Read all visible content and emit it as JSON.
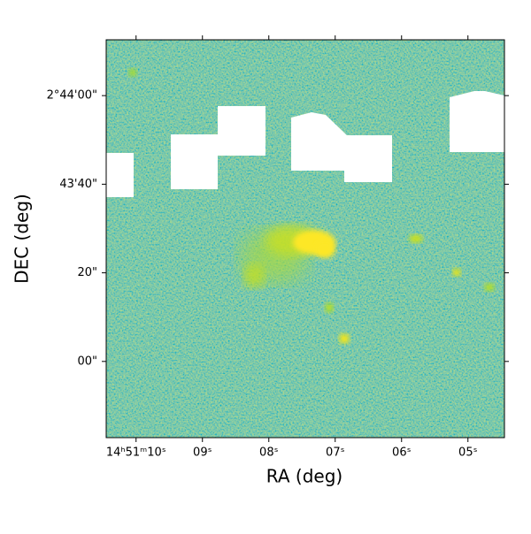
{
  "chart_data": {
    "type": "image",
    "x_label": "RA (deg)",
    "y_label": "DEC (deg)",
    "xlim": [
      10.45,
      4.45
    ],
    "xticks": [
      {
        "value": 10,
        "label": "14ʰ51ᵐ10ˢ"
      },
      {
        "value": 9,
        "label": "09ˢ"
      },
      {
        "value": 8,
        "label": "08ˢ"
      },
      {
        "value": 7,
        "label": "07ˢ"
      },
      {
        "value": 6,
        "label": "06ˢ"
      },
      {
        "value": 5,
        "label": "05ˢ"
      }
    ],
    "ylim": [
      -17.2,
      72.6
    ],
    "yticks": [
      {
        "value": 60,
        "label": "2°44'00\""
      },
      {
        "value": 40,
        "label": "43'40\""
      },
      {
        "value": 20,
        "label": "20\""
      },
      {
        "value": 0,
        "label": "00\""
      }
    ]
  }
}
